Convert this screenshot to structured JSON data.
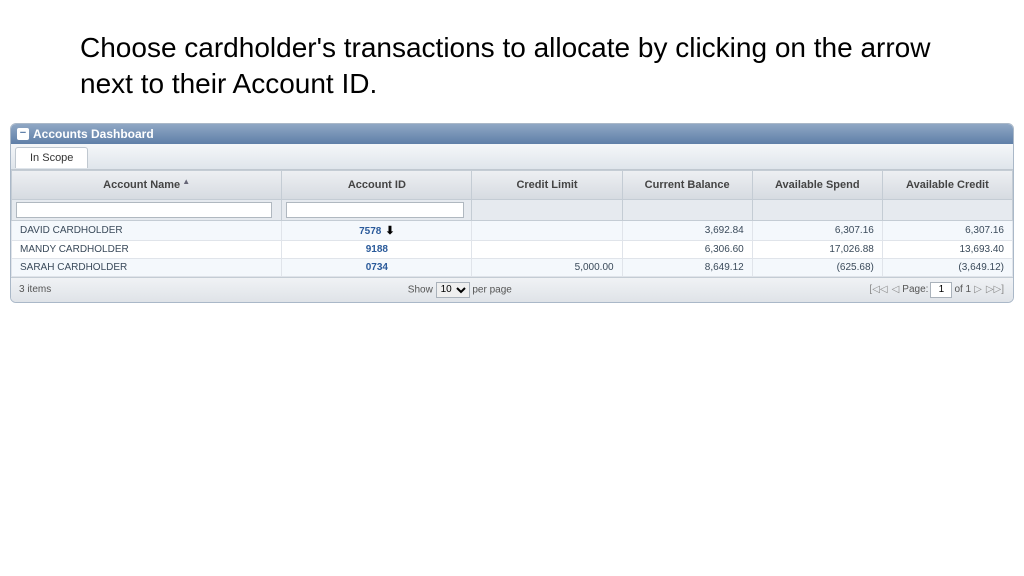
{
  "title": "Choose cardholder's transactions to allocate by clicking on the arrow next to their Account ID.",
  "panel": {
    "title": "Accounts Dashboard"
  },
  "tabs": [
    {
      "label": "In Scope"
    }
  ],
  "columns": {
    "account_name": "Account Name",
    "account_id": "Account ID",
    "credit_limit": "Credit Limit",
    "current_balance": "Current Balance",
    "available_spend": "Available Spend",
    "available_credit": "Available Credit"
  },
  "rows": [
    {
      "name": "DAVID CARDHOLDER",
      "id": "7578",
      "credit_limit": "",
      "current_balance": "3,692.84",
      "available_spend": "6,307.16",
      "available_credit": "6,307.16",
      "has_dropdown": true
    },
    {
      "name": "MANDY CARDHOLDER",
      "id": "9188",
      "credit_limit": "",
      "current_balance": "6,306.60",
      "available_spend": "17,026.88",
      "available_credit": "13,693.40",
      "has_dropdown": false
    },
    {
      "name": "SARAH CARDHOLDER",
      "id": "0734",
      "credit_limit": "5,000.00",
      "current_balance": "8,649.12",
      "available_spend": "(625.68)",
      "available_credit": "(3,649.12)",
      "has_dropdown": false
    }
  ],
  "footer": {
    "count": "3 items",
    "show_label": "Show",
    "per_page_label": "per page",
    "per_page_value": "10",
    "page_label": "Page:",
    "page_value": "1",
    "page_of": "of 1"
  },
  "callout": {
    "fill": "#4a86b8",
    "stroke": "#3a6a94"
  }
}
